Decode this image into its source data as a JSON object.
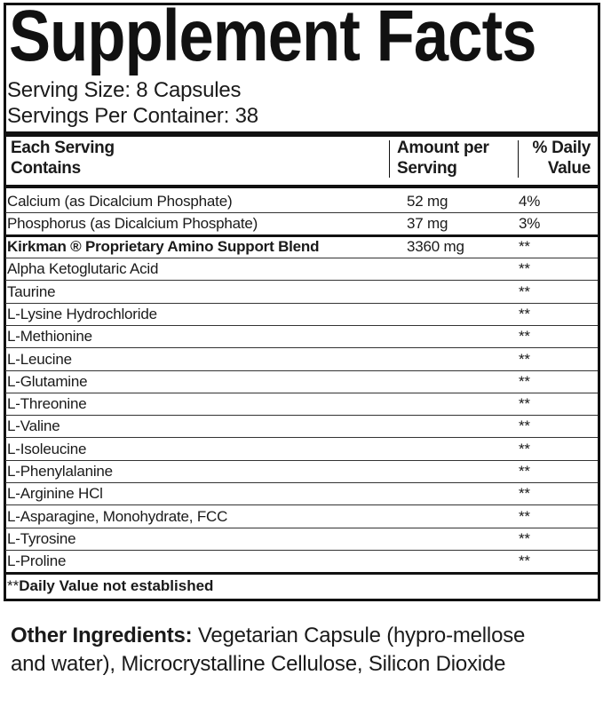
{
  "title": "Supplement Facts",
  "serving_size": "Serving Size: 8 Capsules",
  "servings_per_container": "Servings Per Container: 38",
  "headers": {
    "col1_line1": "Each Serving",
    "col1_line2": "Contains",
    "col2_line1": "Amount per",
    "col2_line2": "Serving",
    "col3_line1": "% Daily",
    "col3_line2": "Value"
  },
  "rows": [
    {
      "name": "Calcium (as Dicalcium Phosphate)",
      "amount": "52 mg",
      "dv": "4%"
    },
    {
      "name": "Phosphorus (as Dicalcium Phosphate)",
      "amount": "37 mg",
      "dv": "3%"
    },
    {
      "name": "Kirkman ® Proprietary Amino Support Blend",
      "amount": "3360 mg",
      "dv": "**"
    },
    {
      "name": "Alpha Ketoglutaric Acid",
      "amount": "",
      "dv": "**"
    },
    {
      "name": "Taurine",
      "amount": "",
      "dv": "**"
    },
    {
      "name": "L-Lysine Hydrochloride",
      "amount": "",
      "dv": "**"
    },
    {
      "name": "L-Methionine",
      "amount": "",
      "dv": "**"
    },
    {
      "name": "L-Leucine",
      "amount": "",
      "dv": "**"
    },
    {
      "name": "L-Glutamine",
      "amount": "",
      "dv": "**"
    },
    {
      "name": "L-Threonine",
      "amount": "",
      "dv": "**"
    },
    {
      "name": "L-Valine",
      "amount": "",
      "dv": "**"
    },
    {
      "name": "L-Isoleucine",
      "amount": "",
      "dv": "**"
    },
    {
      "name": "L-Phenylalanine",
      "amount": "",
      "dv": "**"
    },
    {
      "name": "L-Arginine HCl",
      "amount": "",
      "dv": "**"
    },
    {
      "name": "L-Asparagine, Monohydrate, FCC",
      "amount": "",
      "dv": "**"
    },
    {
      "name": "L-Tyrosine",
      "amount": "",
      "dv": "**"
    },
    {
      "name": "L-Proline",
      "amount": "",
      "dv": "**"
    }
  ],
  "footnote_stars": "**",
  "footnote": "Daily Value not established",
  "other_ingredients": {
    "label": "Other Ingredients:",
    "text": " Vegetarian Capsule (hypro-mellose and water), Microcrystalline Cellulose, Silicon Dioxide"
  }
}
